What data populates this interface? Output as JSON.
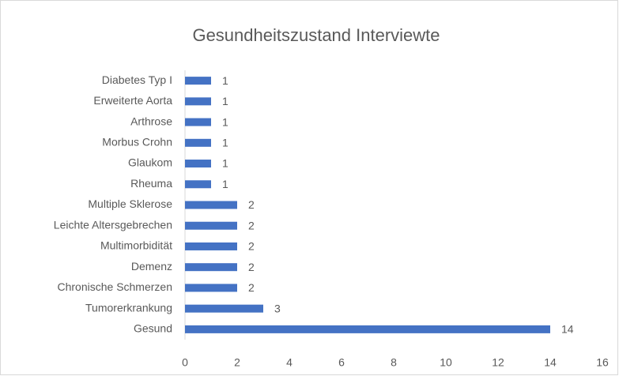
{
  "chart_data": {
    "type": "bar",
    "orientation": "horizontal",
    "title": "Gesundheitszustand Interviewte",
    "categories": [
      "Diabetes Typ I",
      "Erweiterte Aorta",
      "Arthrose",
      "Morbus Crohn",
      "Glaukom",
      "Rheuma",
      "Multiple Sklerose",
      "Leichte Altersgebrechen",
      "Multimorbidität",
      "Demenz",
      "Chronische Schmerzen",
      "Tumorerkrankung",
      "Gesund"
    ],
    "values": [
      1,
      1,
      1,
      1,
      1,
      1,
      2,
      2,
      2,
      2,
      2,
      3,
      14
    ],
    "color": "#4472c4",
    "xlim": [
      0,
      16
    ],
    "xticks": [
      0,
      2,
      4,
      6,
      8,
      10,
      12,
      14,
      16
    ],
    "grid": false
  }
}
